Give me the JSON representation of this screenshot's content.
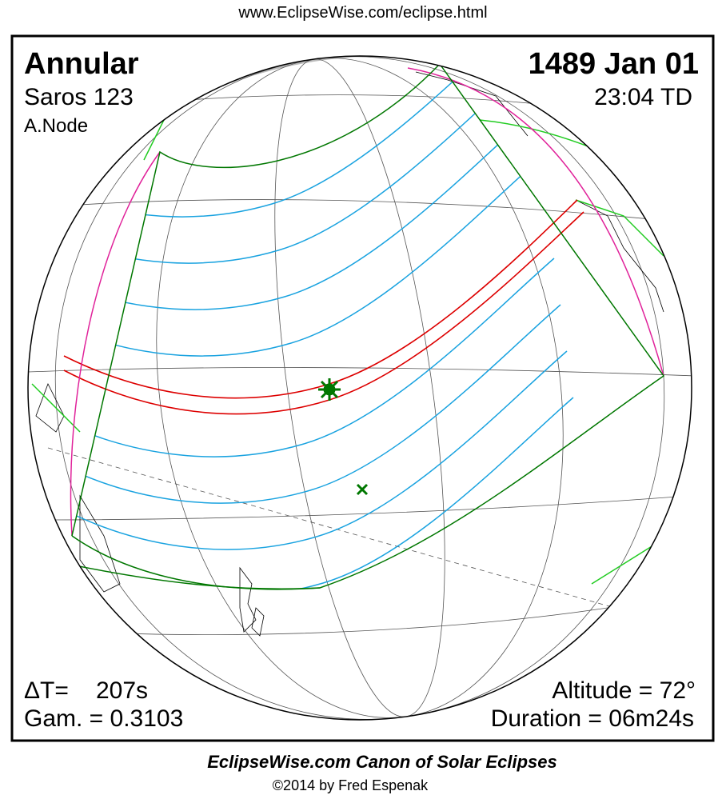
{
  "header": {
    "url": "www.EclipseWise.com/eclipse.html"
  },
  "panel": {
    "title": "Annular",
    "saros": "Saros 123",
    "node": "A.Node",
    "date": "1489 Jan 01",
    "time": "23:04 TD",
    "delta_t_label": "ΔT=",
    "delta_t_value": "207s",
    "gamma": "Gam. = 0.3103",
    "altitude": "Altitude = 72°",
    "duration": "Duration = 06m24s"
  },
  "footer": {
    "canon": "EclipseWise.com Canon of Solar Eclipses",
    "copyright": "©2014 by Fred Espenak"
  }
}
